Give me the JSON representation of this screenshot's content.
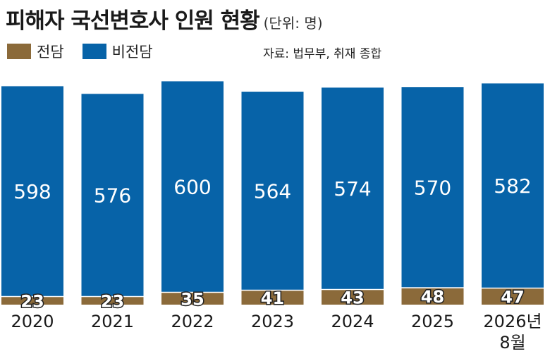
{
  "title": "피해자 국선변호사 인원 현황",
  "unit": "(단위: 명)",
  "source": "자료: 법무부, 취재 종합",
  "colors": {
    "jeondam": "#8B6A3A",
    "bijeondam": "#0763A8"
  },
  "chart_data": {
    "type": "bar",
    "stacked": true,
    "categories": [
      "2020",
      "2021",
      "2022",
      "2023",
      "2024",
      "2025",
      "2026년 8월"
    ],
    "series": [
      {
        "name": "전담",
        "values": [
          23,
          23,
          35,
          41,
          43,
          48,
          47
        ]
      },
      {
        "name": "비전담",
        "values": [
          598,
          576,
          600,
          564,
          574,
          570,
          582
        ]
      }
    ],
    "legend": "top-left",
    "grid": false
  }
}
